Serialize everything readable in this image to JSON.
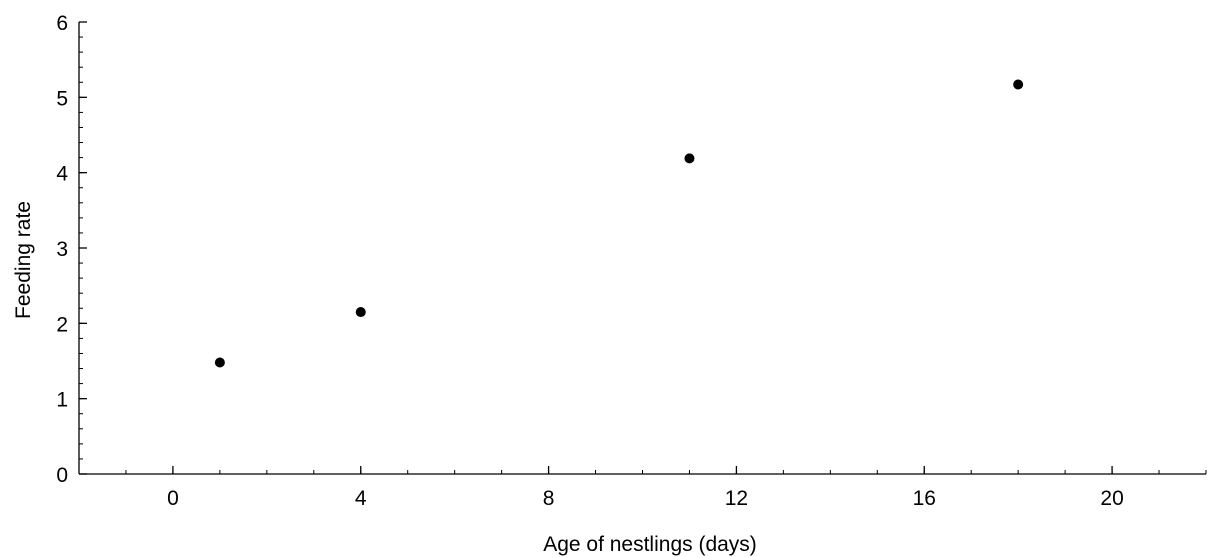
{
  "chart_data": {
    "type": "scatter",
    "title": "",
    "xlabel": "Age of nestlings (days)",
    "ylabel": "Feeding rate",
    "xlim": [
      -2,
      22
    ],
    "ylim": [
      0,
      6
    ],
    "x_ticks": [
      0,
      4,
      8,
      12,
      16,
      20
    ],
    "y_ticks": [
      0,
      1,
      2,
      3,
      4,
      5,
      6
    ],
    "grid": false,
    "legend": "none",
    "marker_color": "#000000",
    "series": [
      {
        "x": [
          1,
          4,
          11,
          18
        ],
        "y": [
          1.48,
          2.15,
          4.19,
          5.17
        ]
      }
    ]
  }
}
